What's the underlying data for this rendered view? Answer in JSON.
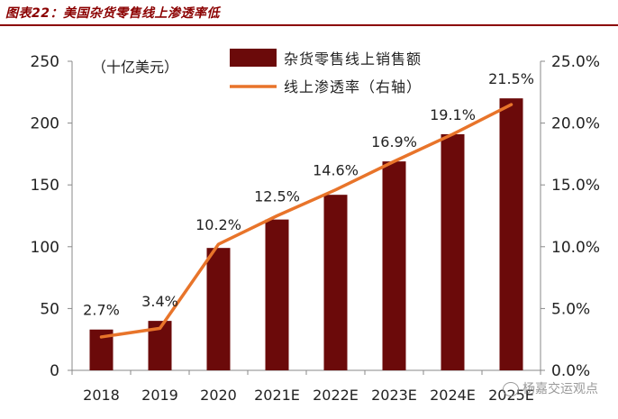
{
  "figure_title": "图表22：美国杂货零售线上渗透率低",
  "watermark": "杨嘉交运观点",
  "chart_data": {
    "type": "bar+line",
    "categories": [
      "2018",
      "2019",
      "2020",
      "2021E",
      "2022E",
      "2023E",
      "2024E",
      "2025E"
    ],
    "series": [
      {
        "name": "杂货零售线上销售额",
        "type": "bar",
        "axis": "left",
        "color": "#6b0a0a",
        "values": [
          33,
          40,
          99,
          122,
          142,
          169,
          191,
          220
        ]
      },
      {
        "name": "线上渗透率（右轴）",
        "type": "line",
        "axis": "right",
        "color": "#e8742a",
        "values": [
          2.7,
          3.4,
          10.2,
          12.5,
          14.6,
          16.9,
          19.1,
          21.5
        ],
        "labels": [
          "2.7%",
          "3.4%",
          "10.2%",
          "12.5%",
          "14.6%",
          "16.9%",
          "19.1%",
          "21.5%"
        ]
      }
    ],
    "left_axis": {
      "unit_label": "（十亿美元）",
      "ylim": [
        0,
        250
      ],
      "ticks": [
        0,
        50,
        100,
        150,
        200,
        250
      ],
      "tick_labels": [
        "0",
        "50",
        "100",
        "150",
        "200",
        "250"
      ]
    },
    "right_axis": {
      "ylim": [
        0,
        25
      ],
      "ticks": [
        0,
        5,
        10,
        15,
        20,
        25
      ],
      "tick_labels": [
        "0.0%",
        "5.0%",
        "10.0%",
        "15.0%",
        "20.0%",
        "25.0%"
      ]
    },
    "legend": [
      "杂货零售线上销售额",
      "线上渗透率（右轴）"
    ],
    "legend_position": "top-center",
    "grid": false
  }
}
